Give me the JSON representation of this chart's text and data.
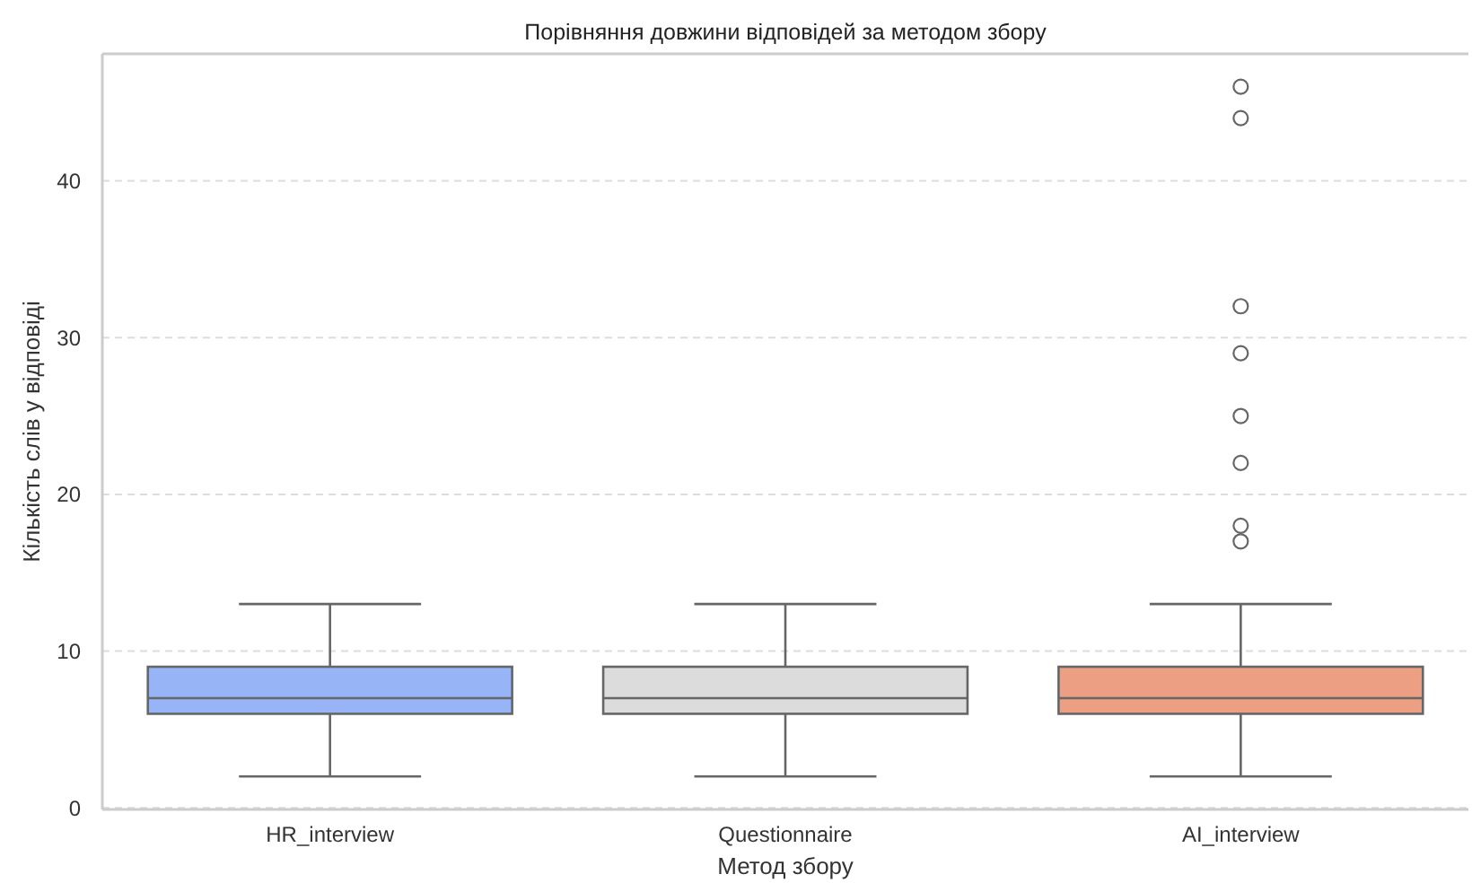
{
  "chart_data": {
    "type": "box",
    "title": "Порівняння довжини відповідей за методом збору",
    "xlabel": "Метод збору",
    "ylabel": "Кількість слів у відповіді",
    "categories": [
      "HR_interview",
      "Questionnaire",
      "AI_interview"
    ],
    "colors": [
      "#97b5f6",
      "#dcdcdc",
      "#ec9f83"
    ],
    "boxes": [
      {
        "low": 2,
        "q1": 6,
        "median": 7,
        "q3": 9,
        "high": 13
      },
      {
        "low": 2,
        "q1": 6,
        "median": 7,
        "q3": 9,
        "high": 13
      },
      {
        "low": 2,
        "q1": 6,
        "median": 7,
        "q3": 9,
        "high": 13,
        "outliers": [
          46,
          44,
          32,
          29,
          25,
          22,
          18,
          17
        ]
      }
    ],
    "ylim": [
      -0.1,
      48.1
    ],
    "yticks": [
      0,
      10,
      20,
      30,
      40
    ],
    "grid": "y"
  }
}
